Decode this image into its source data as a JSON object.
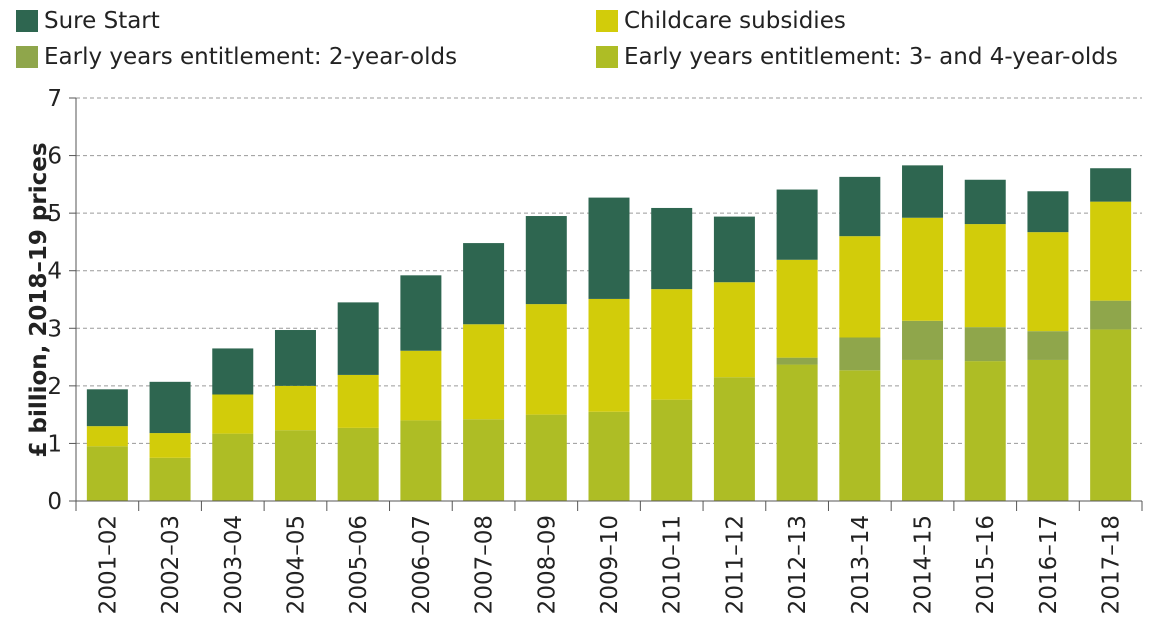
{
  "chart_data": {
    "type": "bar",
    "stacked": true,
    "categories": [
      "2001–02",
      "2002–03",
      "2003–04",
      "2004–05",
      "2005–06",
      "2006–07",
      "2007–08",
      "2008–09",
      "2009–10",
      "2010–11",
      "2011–12",
      "2012–13",
      "2013–14",
      "2014–15",
      "2015–16",
      "2016–17",
      "2017–18"
    ],
    "series": [
      {
        "name": "Early years entitlement: 3- and 4-year-olds",
        "color": "#aebd25",
        "values": [
          0.95,
          0.75,
          1.17,
          1.23,
          1.27,
          1.4,
          1.42,
          1.5,
          1.55,
          1.76,
          2.15,
          2.37,
          2.27,
          2.45,
          2.43,
          2.45,
          2.98
        ]
      },
      {
        "name": "Early years entitlement: 2-year-olds",
        "color": "#8fa64b",
        "values": [
          0,
          0,
          0,
          0,
          0,
          0,
          0,
          0,
          0,
          0,
          0,
          0.12,
          0.57,
          0.68,
          0.59,
          0.5,
          0.5
        ]
      },
      {
        "name": "Childcare subsidies",
        "color": "#d2cc0a",
        "values": [
          0.35,
          0.43,
          0.68,
          0.77,
          0.92,
          1.21,
          1.65,
          1.92,
          1.96,
          1.92,
          1.65,
          1.7,
          1.76,
          1.79,
          1.79,
          1.72,
          1.72
        ]
      },
      {
        "name": "Sure Start",
        "color": "#2e6650",
        "values": [
          0.64,
          0.89,
          0.8,
          0.97,
          1.26,
          1.31,
          1.41,
          1.53,
          1.76,
          1.41,
          1.14,
          1.22,
          1.03,
          0.91,
          0.77,
          0.71,
          0.58
        ]
      }
    ],
    "ylabel": "£ billion, 2018–19 prices",
    "xlabel": "",
    "ylim": [
      0,
      7
    ],
    "yticks": [
      "0",
      "1",
      "2",
      "3",
      "4",
      "5",
      "6",
      "7"
    ],
    "grid": true,
    "legend": {
      "placement": "top",
      "items": [
        {
          "label": "Sure Start",
          "color": "#2e6650"
        },
        {
          "label": "Childcare subsidies",
          "color": "#d2cc0a"
        },
        {
          "label": "Early years entitlement: 2-year-olds",
          "color": "#8fa64b"
        },
        {
          "label": "Early years entitlement: 3- and 4-year-olds",
          "color": "#aebd25"
        }
      ]
    }
  }
}
